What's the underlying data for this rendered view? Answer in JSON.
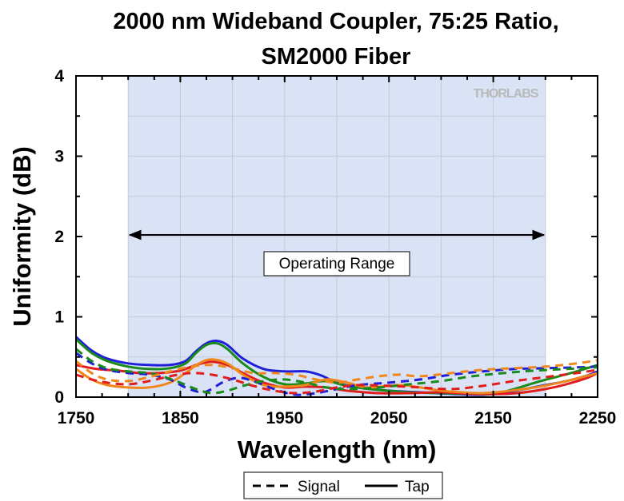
{
  "chart_data": {
    "type": "line",
    "title_lines": [
      "2000 nm Wideband Coupler, 75:25 Ratio,",
      "SM2000 Fiber"
    ],
    "xlabel": "Wavelength (nm)",
    "ylabel": "Uniformity (dB)",
    "xlim": [
      1750,
      2250
    ],
    "ylim": [
      0,
      4
    ],
    "xticks": [
      1750,
      1850,
      1950,
      2050,
      2150,
      2250
    ],
    "yticks": [
      0,
      1,
      2,
      3,
      4
    ],
    "grid": true,
    "operating_range": {
      "x": [
        1800,
        2200
      ],
      "y_arrow": 2.02,
      "label": "Operating Range",
      "fill": "#d9e3f5"
    },
    "watermark": "THORLABS",
    "legend": {
      "placement": "bottom-center",
      "entries": [
        {
          "label": "Signal",
          "style": "dashed"
        },
        {
          "label": "Tap",
          "style": "solid"
        }
      ]
    },
    "series": [
      {
        "kind": "Tap",
        "style": "solid",
        "color": "#1f1fdb",
        "x": [
          1750,
          1765,
          1780,
          1800,
          1820,
          1840,
          1855,
          1865,
          1875,
          1885,
          1895,
          1910,
          1930,
          1950,
          1970,
          1985,
          2000,
          2020,
          2050,
          2080,
          2110,
          2140,
          2160,
          2180,
          2200,
          2220,
          2240,
          2250
        ],
        "y": [
          0.75,
          0.58,
          0.48,
          0.42,
          0.4,
          0.4,
          0.45,
          0.57,
          0.67,
          0.7,
          0.65,
          0.48,
          0.35,
          0.32,
          0.32,
          0.27,
          0.18,
          0.12,
          0.08,
          0.06,
          0.04,
          0.03,
          0.06,
          0.1,
          0.15,
          0.2,
          0.27,
          0.32
        ]
      },
      {
        "kind": "Tap",
        "style": "solid",
        "color": "#1a8a1a",
        "x": [
          1750,
          1765,
          1780,
          1800,
          1820,
          1840,
          1855,
          1865,
          1875,
          1885,
          1895,
          1910,
          1930,
          1950,
          1970,
          1990,
          2010,
          2040,
          2070,
          2100,
          2130,
          2150,
          2170,
          2190,
          2210,
          2230,
          2250
        ],
        "y": [
          0.72,
          0.55,
          0.45,
          0.38,
          0.35,
          0.36,
          0.42,
          0.55,
          0.65,
          0.67,
          0.6,
          0.42,
          0.25,
          0.16,
          0.17,
          0.2,
          0.14,
          0.09,
          0.06,
          0.05,
          0.04,
          0.04,
          0.1,
          0.18,
          0.25,
          0.32,
          0.4
        ]
      },
      {
        "kind": "Tap",
        "style": "solid",
        "color": "#e01c1c",
        "x": [
          1750,
          1770,
          1790,
          1810,
          1830,
          1850,
          1865,
          1880,
          1895,
          1910,
          1930,
          1950,
          1970,
          1990,
          2010,
          2040,
          2070,
          2100,
          2130,
          2160,
          2180,
          2200,
          2220,
          2240,
          2250
        ],
        "y": [
          0.4,
          0.35,
          0.33,
          0.3,
          0.3,
          0.33,
          0.4,
          0.44,
          0.4,
          0.3,
          0.18,
          0.12,
          0.13,
          0.12,
          0.08,
          0.05,
          0.05,
          0.06,
          0.04,
          0.04,
          0.06,
          0.1,
          0.16,
          0.24,
          0.3
        ]
      },
      {
        "kind": "Tap",
        "style": "solid",
        "color": "#f0871c",
        "x": [
          1750,
          1765,
          1780,
          1800,
          1820,
          1840,
          1855,
          1868,
          1880,
          1895,
          1910,
          1930,
          1950,
          1970,
          1990,
          2010,
          2030,
          2060,
          2080,
          2100,
          2120,
          2140,
          2160,
          2190,
          2220,
          2250
        ],
        "y": [
          0.35,
          0.22,
          0.15,
          0.12,
          0.12,
          0.18,
          0.3,
          0.42,
          0.47,
          0.42,
          0.28,
          0.15,
          0.13,
          0.15,
          0.22,
          0.18,
          0.12,
          0.15,
          0.12,
          0.08,
          0.06,
          0.05,
          0.07,
          0.12,
          0.2,
          0.3
        ]
      },
      {
        "kind": "Signal",
        "style": "dashed",
        "color": "#1f1fdb",
        "x": [
          1750,
          1765,
          1780,
          1800,
          1820,
          1840,
          1855,
          1870,
          1880,
          1890,
          1905,
          1920,
          1940,
          1960,
          1980,
          2000,
          2020,
          2050,
          2080,
          2110,
          2140,
          2170,
          2200,
          2230,
          2250
        ],
        "y": [
          0.55,
          0.42,
          0.34,
          0.3,
          0.28,
          0.22,
          0.12,
          0.06,
          0.1,
          0.18,
          0.24,
          0.2,
          0.1,
          0.03,
          0.05,
          0.1,
          0.15,
          0.18,
          0.22,
          0.28,
          0.32,
          0.35,
          0.36,
          0.37,
          0.38
        ]
      },
      {
        "kind": "Signal",
        "style": "dashed",
        "color": "#1a8a1a",
        "x": [
          1750,
          1765,
          1780,
          1800,
          1820,
          1835,
          1850,
          1865,
          1880,
          1895,
          1910,
          1930,
          1950,
          1970,
          1990,
          2010,
          2040,
          2070,
          2100,
          2130,
          2160,
          2190,
          2220,
          2250
        ],
        "y": [
          0.6,
          0.45,
          0.36,
          0.32,
          0.3,
          0.25,
          0.18,
          0.1,
          0.05,
          0.08,
          0.14,
          0.2,
          0.22,
          0.18,
          0.12,
          0.1,
          0.12,
          0.16,
          0.2,
          0.26,
          0.3,
          0.33,
          0.35,
          0.37
        ]
      },
      {
        "kind": "Signal",
        "style": "dashed",
        "color": "#e01c1c",
        "x": [
          1750,
          1765,
          1780,
          1800,
          1820,
          1840,
          1860,
          1880,
          1900,
          1920,
          1940,
          1960,
          1980,
          2000,
          2020,
          2050,
          2080,
          2110,
          2140,
          2170,
          2200,
          2230,
          2250
        ],
        "y": [
          0.28,
          0.22,
          0.18,
          0.16,
          0.2,
          0.26,
          0.3,
          0.28,
          0.22,
          0.14,
          0.08,
          0.05,
          0.07,
          0.12,
          0.15,
          0.14,
          0.12,
          0.1,
          0.14,
          0.2,
          0.25,
          0.3,
          0.34
        ]
      },
      {
        "kind": "Signal",
        "style": "dashed",
        "color": "#f0871c",
        "x": [
          1750,
          1765,
          1780,
          1800,
          1820,
          1840,
          1860,
          1880,
          1900,
          1920,
          1940,
          1960,
          1980,
          2000,
          2020,
          2040,
          2060,
          2080,
          2110,
          2140,
          2170,
          2200,
          2230,
          2250
        ],
        "y": [
          0.45,
          0.3,
          0.22,
          0.2,
          0.25,
          0.32,
          0.38,
          0.4,
          0.36,
          0.3,
          0.3,
          0.28,
          0.22,
          0.18,
          0.22,
          0.26,
          0.28,
          0.26,
          0.3,
          0.34,
          0.36,
          0.38,
          0.42,
          0.46
        ]
      }
    ]
  }
}
